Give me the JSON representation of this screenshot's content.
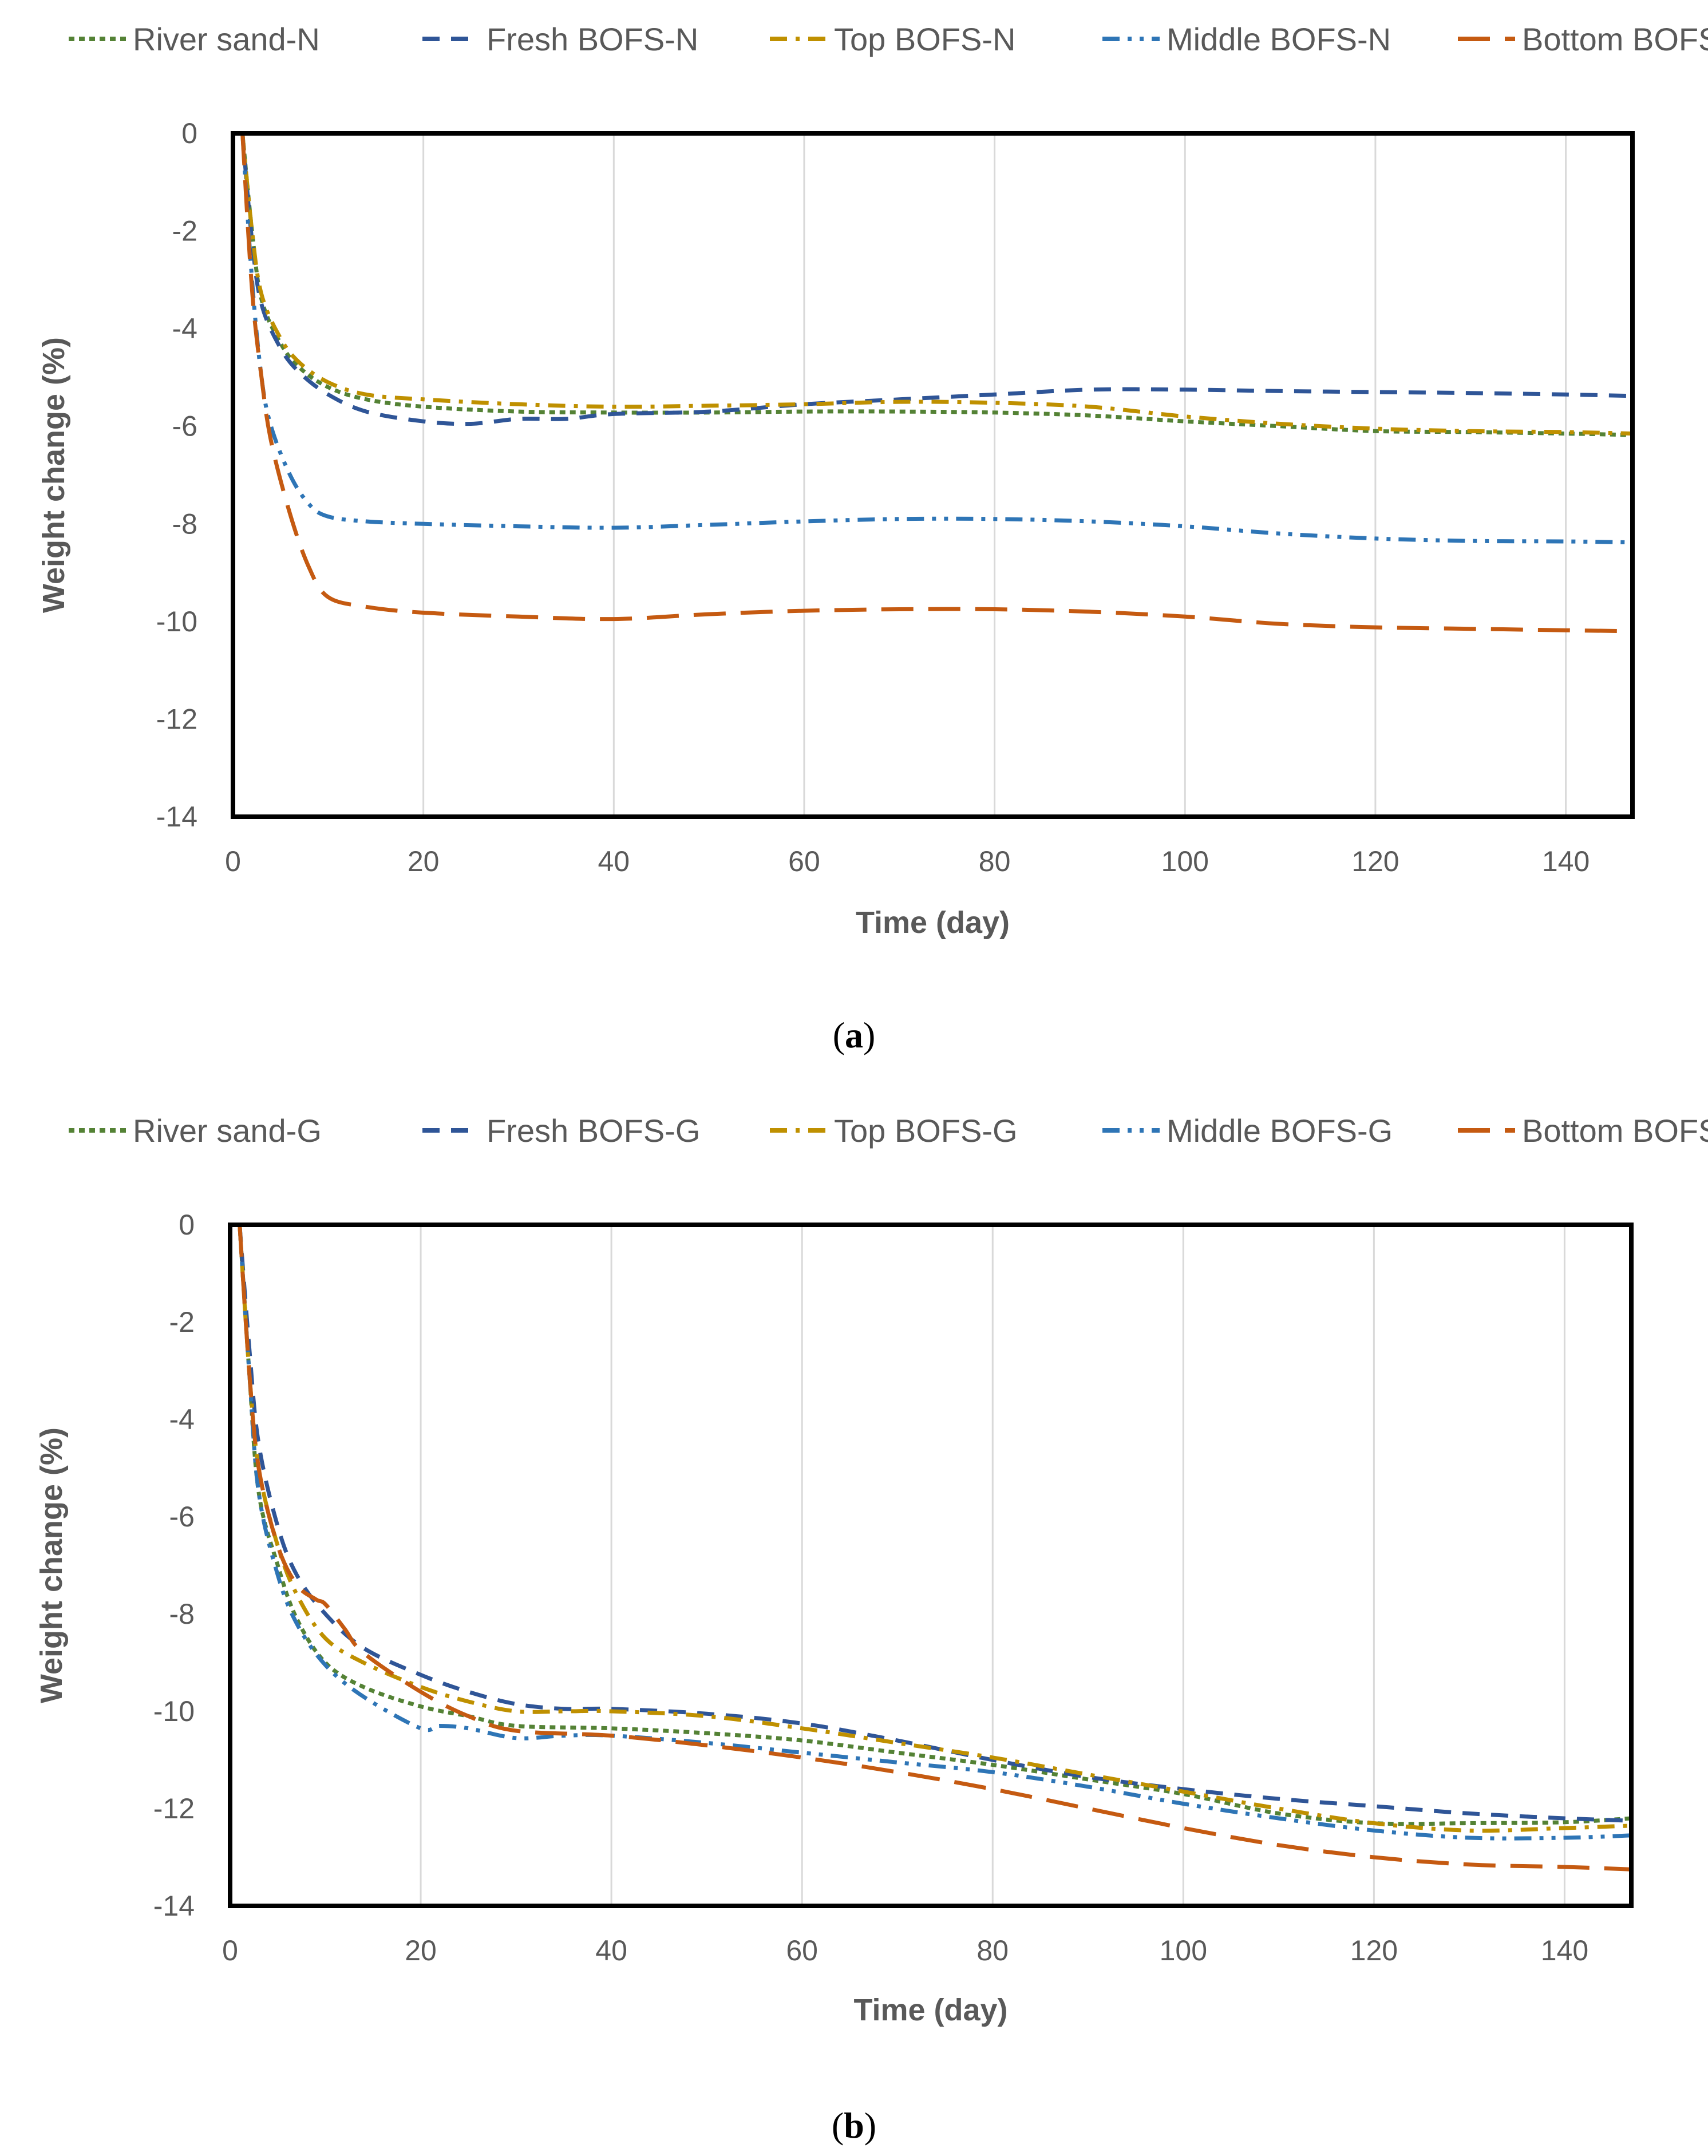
{
  "colors": {
    "river_sand": "#548235",
    "fresh_bofs": "#2F5597",
    "top_bofs": "#BF9000",
    "middle_bofs": "#2E75B6",
    "bottom_bofs": "#C55A11",
    "grid": "#D9D9D9",
    "axis_text": "#595959",
    "frame": "#000000"
  },
  "chart_data": [
    {
      "id": "a",
      "type": "line",
      "caption_label": "a",
      "caption_open": "(",
      "caption_close": ")",
      "xlabel": "Time (day)",
      "ylabel": "Weight change (%)",
      "xlim": [
        0,
        147
      ],
      "ylim": [
        -14,
        0
      ],
      "xticks": [
        0,
        20,
        40,
        60,
        80,
        100,
        120,
        140
      ],
      "yticks": [
        0,
        -2,
        -4,
        -6,
        -8,
        -10,
        -12,
        -14
      ],
      "grid": "vertical",
      "legend_position": "top",
      "series": [
        {
          "name": "River sand-N",
          "style": "short-dot",
          "color_key": "river_sand",
          "x": [
            1,
            2,
            3,
            5,
            7,
            10,
            14,
            20,
            30,
            40,
            50,
            60,
            70,
            80,
            90,
            100,
            110,
            120,
            130,
            140,
            147
          ],
          "y": [
            0,
            -2.0,
            -3.4,
            -4.3,
            -4.8,
            -5.2,
            -5.45,
            -5.6,
            -5.7,
            -5.72,
            -5.72,
            -5.7,
            -5.7,
            -5.72,
            -5.78,
            -5.9,
            -6.0,
            -6.1,
            -6.12,
            -6.15,
            -6.18
          ]
        },
        {
          "name": "Fresh BOFS-N",
          "style": "dash",
          "color_key": "fresh_bofs",
          "x": [
            1,
            2,
            3,
            5,
            7,
            10,
            14,
            20,
            25,
            30,
            35,
            40,
            50,
            60,
            70,
            80,
            90,
            100,
            110,
            120,
            130,
            140,
            147
          ],
          "y": [
            0,
            -2.2,
            -3.5,
            -4.4,
            -4.9,
            -5.35,
            -5.7,
            -5.9,
            -5.95,
            -5.85,
            -5.85,
            -5.75,
            -5.7,
            -5.55,
            -5.45,
            -5.35,
            -5.25,
            -5.25,
            -5.28,
            -5.3,
            -5.32,
            -5.35,
            -5.38
          ]
        },
        {
          "name": "Top BOFS-N",
          "style": "dash-dot",
          "color_key": "top_bofs",
          "x": [
            1,
            2,
            3,
            5,
            7,
            10,
            14,
            20,
            30,
            40,
            50,
            60,
            70,
            80,
            90,
            100,
            110,
            120,
            130,
            140,
            147
          ],
          "y": [
            0,
            -2.0,
            -3.3,
            -4.2,
            -4.7,
            -5.1,
            -5.35,
            -5.45,
            -5.55,
            -5.6,
            -5.58,
            -5.55,
            -5.5,
            -5.52,
            -5.6,
            -5.8,
            -5.95,
            -6.05,
            -6.1,
            -6.12,
            -6.15
          ]
        },
        {
          "name": "Middle BOFS-N",
          "style": "dash-dot-dot",
          "color_key": "middle_bofs",
          "x": [
            1,
            2,
            3,
            4,
            6,
            8,
            10,
            14,
            20,
            30,
            40,
            50,
            60,
            70,
            80,
            90,
            100,
            110,
            120,
            130,
            140,
            147
          ],
          "y": [
            0,
            -3.0,
            -5.0,
            -6.0,
            -7.0,
            -7.6,
            -7.85,
            -7.95,
            -8.0,
            -8.05,
            -8.08,
            -8.02,
            -7.95,
            -7.9,
            -7.9,
            -7.95,
            -8.05,
            -8.2,
            -8.3,
            -8.35,
            -8.36,
            -8.38
          ]
        },
        {
          "name": "Bottom BOFS-N",
          "style": "long-dash",
          "color_key": "bottom_bofs",
          "x": [
            1,
            2,
            3,
            4,
            6,
            8,
            10,
            14,
            20,
            30,
            40,
            50,
            60,
            70,
            80,
            90,
            100,
            110,
            120,
            130,
            140,
            147
          ],
          "y": [
            0,
            -3.2,
            -5.0,
            -6.3,
            -7.8,
            -8.9,
            -9.5,
            -9.7,
            -9.82,
            -9.9,
            -9.95,
            -9.85,
            -9.78,
            -9.75,
            -9.75,
            -9.8,
            -9.9,
            -10.05,
            -10.12,
            -10.15,
            -10.18,
            -10.2
          ]
        }
      ]
    },
    {
      "id": "b",
      "type": "line",
      "caption_label": "b",
      "caption_open": "(",
      "caption_close": ")",
      "xlabel": "Time (day)",
      "ylabel": "Weight change (%)",
      "xlim": [
        0,
        147
      ],
      "ylim": [
        -14,
        0
      ],
      "xticks": [
        0,
        20,
        40,
        60,
        80,
        100,
        120,
        140
      ],
      "yticks": [
        0,
        -2,
        -4,
        -6,
        -8,
        -10,
        -12,
        -14
      ],
      "grid": "vertical",
      "legend_position": "top",
      "series": [
        {
          "name": "River sand-G",
          "style": "short-dot",
          "color_key": "river_sand",
          "x": [
            1,
            2,
            3,
            5,
            7,
            10,
            14,
            20,
            25,
            30,
            40,
            50,
            60,
            70,
            80,
            90,
            100,
            110,
            120,
            130,
            140,
            147
          ],
          "y": [
            0,
            -3.0,
            -5.5,
            -7.0,
            -8.1,
            -9.0,
            -9.5,
            -9.9,
            -10.1,
            -10.3,
            -10.35,
            -10.45,
            -10.6,
            -10.85,
            -11.1,
            -11.4,
            -11.7,
            -12.1,
            -12.3,
            -12.3,
            -12.28,
            -12.2
          ]
        },
        {
          "name": "Fresh BOFS-G",
          "style": "dash",
          "color_key": "fresh_bofs",
          "x": [
            1,
            2,
            3,
            5,
            7,
            10,
            14,
            20,
            25,
            30,
            35,
            40,
            50,
            60,
            70,
            80,
            90,
            100,
            110,
            120,
            130,
            140,
            147
          ],
          "y": [
            0,
            -2.5,
            -4.5,
            -6.2,
            -7.2,
            -8.0,
            -8.7,
            -9.25,
            -9.6,
            -9.85,
            -9.95,
            -9.95,
            -10.05,
            -10.25,
            -10.6,
            -11.0,
            -11.35,
            -11.6,
            -11.8,
            -11.95,
            -12.1,
            -12.2,
            -12.25
          ]
        },
        {
          "name": "Top BOFS-G",
          "style": "dash-dot",
          "color_key": "top_bofs",
          "x": [
            1,
            2,
            3,
            5,
            7,
            10,
            14,
            20,
            25,
            30,
            35,
            40,
            50,
            60,
            70,
            80,
            90,
            100,
            110,
            120,
            130,
            140,
            147
          ],
          "y": [
            0,
            -3.0,
            -5.0,
            -6.6,
            -7.6,
            -8.5,
            -9.0,
            -9.5,
            -9.8,
            -10.0,
            -10.0,
            -10.0,
            -10.1,
            -10.35,
            -10.65,
            -10.95,
            -11.3,
            -11.65,
            -12.0,
            -12.3,
            -12.45,
            -12.4,
            -12.35
          ]
        },
        {
          "name": "Middle BOFS-G",
          "style": "dash-dot-dot",
          "color_key": "middle_bofs",
          "x": [
            1,
            2,
            3,
            5,
            7,
            10,
            14,
            20,
            22,
            25,
            30,
            35,
            40,
            50,
            60,
            70,
            80,
            90,
            100,
            110,
            120,
            130,
            140,
            147
          ],
          "y": [
            0,
            -3.0,
            -5.5,
            -7.2,
            -8.2,
            -9.05,
            -9.7,
            -10.35,
            -10.3,
            -10.35,
            -10.55,
            -10.5,
            -10.5,
            -10.65,
            -10.85,
            -11.05,
            -11.25,
            -11.55,
            -11.9,
            -12.2,
            -12.45,
            -12.6,
            -12.6,
            -12.55
          ]
        },
        {
          "name": "Bottom BOFS-G",
          "style": "long-dash",
          "color_key": "bottom_bofs",
          "x": [
            1,
            2,
            3,
            5,
            7,
            9,
            10,
            12,
            14,
            20,
            25,
            30,
            40,
            50,
            60,
            70,
            80,
            90,
            100,
            110,
            120,
            130,
            140,
            147
          ],
          "y": [
            0,
            -3.0,
            -5.0,
            -6.6,
            -7.4,
            -7.7,
            -7.8,
            -8.3,
            -8.8,
            -9.6,
            -10.1,
            -10.4,
            -10.5,
            -10.7,
            -10.95,
            -11.25,
            -11.6,
            -12.0,
            -12.4,
            -12.75,
            -13.0,
            -13.15,
            -13.2,
            -13.25
          ]
        }
      ]
    }
  ]
}
